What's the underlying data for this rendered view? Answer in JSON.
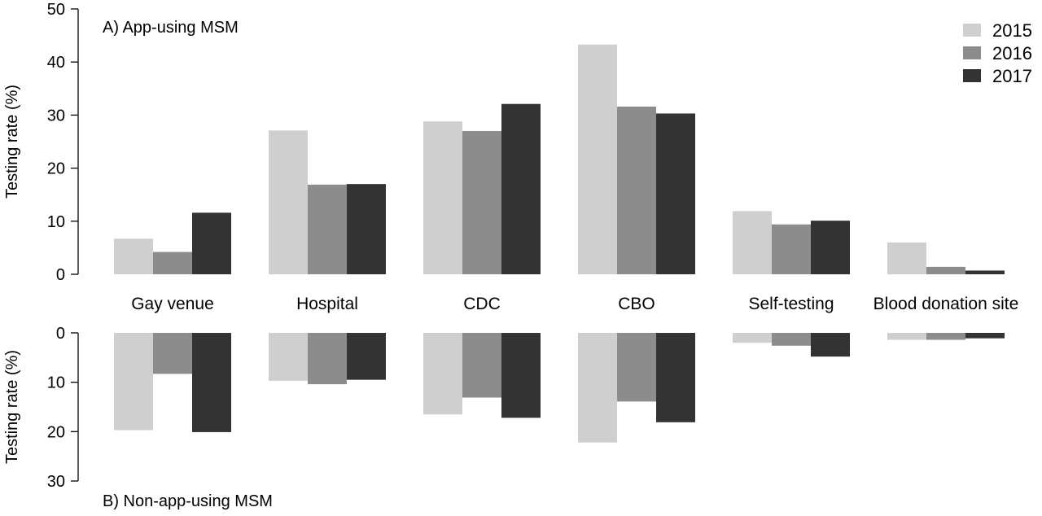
{
  "chart_data": {
    "type": "bar",
    "categories": [
      "Gay venue",
      "Hospital",
      "CDC",
      "CBO",
      "Self-testing",
      "Blood donation site"
    ],
    "legend": [
      "2015",
      "2016",
      "2017"
    ],
    "colors": {
      "2015": "#cfcfcf",
      "2016": "#8c8c8c",
      "2017": "#333333"
    },
    "panels": [
      {
        "label": "A) App-using MSM",
        "ylabel": "Testing rate (%)",
        "ylim": [
          0,
          50
        ],
        "yticks": [
          0,
          10,
          20,
          30,
          40,
          50
        ],
        "direction": "up",
        "series": [
          {
            "name": "2015",
            "values": [
              6.7,
              27.1,
              28.8,
              43.3,
              11.9,
              6.0
            ]
          },
          {
            "name": "2016",
            "values": [
              4.2,
              16.9,
              27.0,
              31.6,
              9.4,
              1.4
            ]
          },
          {
            "name": "2017",
            "values": [
              11.6,
              17.0,
              32.1,
              30.3,
              10.1,
              0.7
            ]
          }
        ]
      },
      {
        "label": "B) Non-app-using MSM",
        "ylabel": "Testing rate (%)",
        "ylim": [
          0,
          30
        ],
        "yticks": [
          0,
          10,
          20,
          30
        ],
        "direction": "down",
        "series": [
          {
            "name": "2015",
            "values": [
              19.7,
              9.7,
              16.5,
              22.2,
              2.0,
              1.4
            ]
          },
          {
            "name": "2016",
            "values": [
              8.3,
              10.4,
              13.1,
              13.9,
              2.6,
              1.4
            ]
          },
          {
            "name": "2017",
            "values": [
              20.1,
              9.5,
              17.2,
              18.1,
              4.8,
              1.1
            ]
          }
        ]
      }
    ],
    "legend_position": "top-right",
    "grid": false
  }
}
